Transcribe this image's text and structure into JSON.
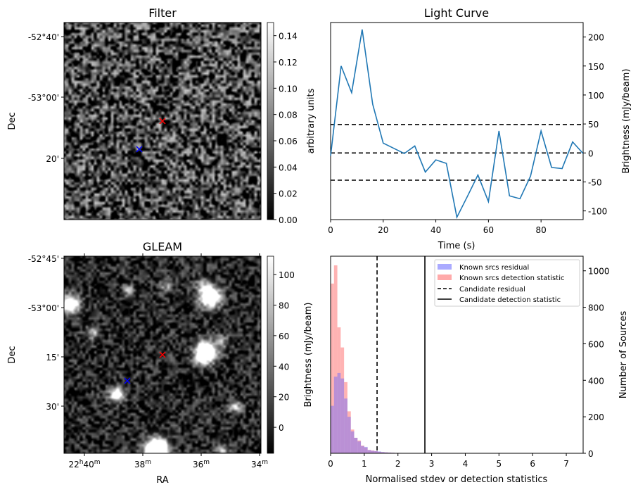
{
  "colors": {
    "line": "#1f77b4",
    "known_residual": "#aaaaff",
    "known_detection": "#ff9999",
    "candidate_red": "#ff0000",
    "candidate_blue": "#0000ff"
  },
  "chart_data": [
    {
      "type": "heatmap",
      "title": "Filter",
      "ylabel": "Dec",
      "yticks": [
        "-52°40'",
        "-53°00'",
        "20'"
      ],
      "colorbar": {
        "label": "arbitrary units",
        "range": [
          0,
          0.15
        ],
        "ticks": [
          "0.00",
          "0.02",
          "0.04",
          "0.06",
          "0.08",
          "0.10",
          "0.12",
          "0.14"
        ]
      },
      "markers": [
        {
          "color": "red",
          "symbol": "x"
        },
        {
          "color": "blue",
          "symbol": "x"
        }
      ]
    },
    {
      "type": "line",
      "title": "Light Curve",
      "xlabel": "Time (s)",
      "ylabel": "Brightness (mJy/beam)",
      "xlim": [
        0,
        96
      ],
      "ylim": [
        -115,
        225
      ],
      "xticks": [
        "0",
        "20",
        "40",
        "60",
        "80"
      ],
      "yticks": [
        "-100",
        "-50",
        "0",
        "50",
        "100",
        "150",
        "200"
      ],
      "x": [
        0,
        4,
        8,
        12,
        16,
        20,
        24,
        28,
        32,
        36,
        40,
        44,
        48,
        52,
        56,
        60,
        64,
        68,
        72,
        76,
        80,
        84,
        88,
        92,
        96
      ],
      "y": [
        -5,
        150,
        104,
        213,
        84,
        17,
        8,
        -1,
        12,
        -33,
        -12,
        -18,
        -111,
        -75,
        -38,
        -84,
        38,
        -74,
        -79,
        -40,
        38,
        -25,
        -27,
        19,
        -1
      ],
      "hlines": [
        49,
        0,
        -47
      ]
    },
    {
      "type": "heatmap",
      "title": "GLEAM",
      "xlabel": "RA",
      "ylabel": "Dec",
      "xticks": [
        "22h40m",
        "38m",
        "36m",
        "34m"
      ],
      "yticks": [
        "-52°45'",
        "-53°00'",
        "15'",
        "30'"
      ],
      "colorbar": {
        "label": "Brightness (mJy/beam)",
        "range": [
          -17,
          112
        ],
        "ticks": [
          "0",
          "20",
          "40",
          "60",
          "80",
          "100"
        ]
      },
      "markers": [
        {
          "color": "red",
          "symbol": "x"
        },
        {
          "color": "blue",
          "symbol": "x"
        }
      ]
    },
    {
      "type": "bar",
      "xlabel": "Normalised stdev or detection statistics",
      "ylabel": "Number of Sources",
      "xlim": [
        0,
        7.5
      ],
      "ylim": [
        0,
        1080
      ],
      "xticks": [
        "0",
        "1",
        "2",
        "3",
        "4",
        "5",
        "6",
        "7"
      ],
      "yticks": [
        "0",
        "200",
        "400",
        "600",
        "800",
        "1000"
      ],
      "bin_width": 0.1,
      "series": [
        {
          "name": "Known srcs residual",
          "values": [
            260,
            420,
            440,
            410,
            300,
            200,
            120,
            85,
            65,
            40,
            35,
            18,
            14,
            12,
            10,
            7,
            5,
            4,
            3,
            2,
            2,
            1,
            1,
            1,
            1
          ]
        },
        {
          "name": "Known srcs detection statistic",
          "values": [
            930,
            1030,
            690,
            580,
            390,
            230,
            130,
            85,
            70,
            42,
            32,
            18,
            15,
            12,
            8,
            6,
            5,
            4,
            3,
            2,
            2,
            1,
            1,
            1,
            1
          ]
        }
      ],
      "vlines": [
        {
          "name": "Candidate residual",
          "x": 1.38,
          "style": "dashed"
        },
        {
          "name": "Candidate detection statistic",
          "x": 2.8,
          "style": "solid"
        }
      ]
    }
  ]
}
